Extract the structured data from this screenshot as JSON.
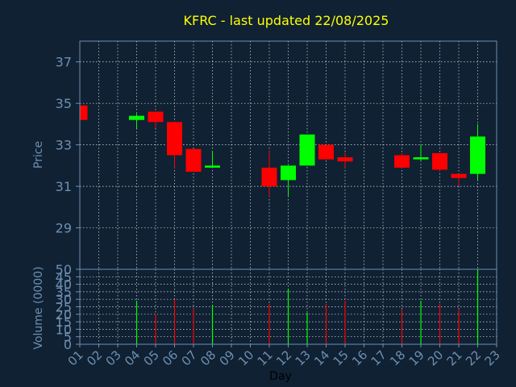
{
  "chart_data": {
    "type": "candlestick",
    "title": "KFRC - last updated 22/08/2025",
    "price_axis": {
      "label": "Price",
      "ylim": [
        27,
        38
      ],
      "ticks": [
        29,
        31,
        33,
        35,
        37
      ]
    },
    "volume_axis": {
      "label": "Volume (0000)",
      "ylim": [
        0,
        50
      ],
      "ticks": [
        0,
        5,
        10,
        15,
        20,
        25,
        30,
        35,
        40,
        45,
        50
      ]
    },
    "x_axis": {
      "label": "Day",
      "categories": [
        "01",
        "02",
        "03",
        "04",
        "05",
        "06",
        "07",
        "08",
        "09",
        "10",
        "11",
        "12",
        "13",
        "14",
        "15",
        "16",
        "17",
        "18",
        "19",
        "20",
        "21",
        "22",
        "23"
      ]
    },
    "grid": true,
    "colors": {
      "up": "#00ff00",
      "down": "#ff0000",
      "grid": "#ffffff",
      "axis": "#6f8fb0",
      "title": "#ffff00",
      "background": "#0f2133"
    },
    "candles": [
      {
        "day": "01",
        "open": 34.9,
        "high": 34.9,
        "low": 34.2,
        "close": 34.2
      },
      {
        "day": "04",
        "open": 34.2,
        "high": 34.5,
        "low": 33.8,
        "close": 34.4
      },
      {
        "day": "05",
        "open": 34.6,
        "high": 34.6,
        "low": 33.8,
        "close": 34.1
      },
      {
        "day": "06",
        "open": 34.1,
        "high": 34.1,
        "low": 31.9,
        "close": 32.5
      },
      {
        "day": "07",
        "open": 32.8,
        "high": 32.8,
        "low": 31.7,
        "close": 31.7
      },
      {
        "day": "08",
        "open": 31.9,
        "high": 32.7,
        "low": 31.9,
        "close": 32.0
      },
      {
        "day": "11",
        "open": 31.9,
        "high": 32.7,
        "low": 30.5,
        "close": 31.0
      },
      {
        "day": "12",
        "open": 31.3,
        "high": 32.0,
        "low": 30.5,
        "close": 32.0
      },
      {
        "day": "13",
        "open": 32.0,
        "high": 33.5,
        "low": 32.0,
        "close": 33.5
      },
      {
        "day": "14",
        "open": 33.0,
        "high": 33.0,
        "low": 32.3,
        "close": 32.3
      },
      {
        "day": "15",
        "open": 32.4,
        "high": 32.6,
        "low": 31.9,
        "close": 32.2
      },
      {
        "day": "18",
        "open": 32.5,
        "high": 32.6,
        "low": 31.9,
        "close": 31.9
      },
      {
        "day": "19",
        "open": 32.3,
        "high": 33.0,
        "low": 32.2,
        "close": 32.4
      },
      {
        "day": "20",
        "open": 32.6,
        "high": 32.6,
        "low": 31.7,
        "close": 31.8
      },
      {
        "day": "21",
        "open": 31.6,
        "high": 31.6,
        "low": 31.0,
        "close": 31.4
      },
      {
        "day": "22",
        "open": 31.6,
        "high": 34.0,
        "low": 31.3,
        "close": 33.4
      }
    ],
    "volume": [
      {
        "day": "04",
        "value": 29
      },
      {
        "day": "05",
        "value": 20
      },
      {
        "day": "06",
        "value": 30
      },
      {
        "day": "07",
        "value": 24
      },
      {
        "day": "08",
        "value": 26
      },
      {
        "day": "11",
        "value": 27
      },
      {
        "day": "12",
        "value": 37
      },
      {
        "day": "13",
        "value": 21
      },
      {
        "day": "14",
        "value": 27
      },
      {
        "day": "15",
        "value": 29
      },
      {
        "day": "18",
        "value": 23
      },
      {
        "day": "19",
        "value": 29
      },
      {
        "day": "20",
        "value": 27
      },
      {
        "day": "21",
        "value": 23
      },
      {
        "day": "22",
        "value": 50
      }
    ]
  }
}
